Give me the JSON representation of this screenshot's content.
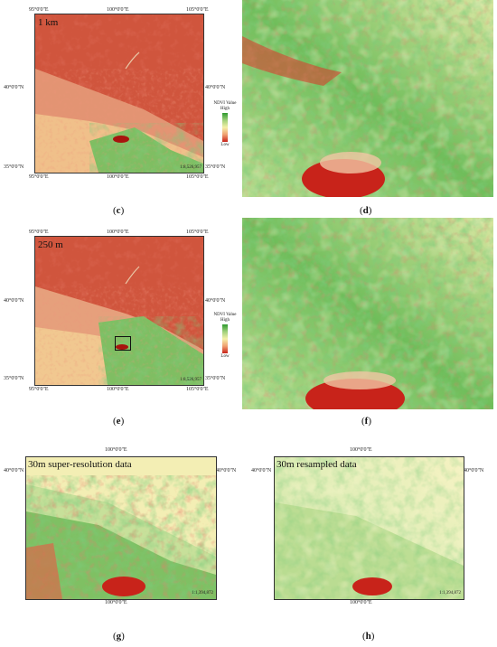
{
  "panels": {
    "c": {
      "letter": "c",
      "resolution": "1 km",
      "coords": {
        "top_left": "95°0'0\"E",
        "top_right": "105°0'0\"E",
        "top_mid": "100°0'0\"E",
        "bottom_left": "95°0'0\"E",
        "bottom_mid": "100°0'0\"E",
        "bottom_right": "105°0'0\"E",
        "left_upper": "40°0'0\"N",
        "left_lower": "35°0'0\"N",
        "right_upper": "40°0'0\"N",
        "right_lower": "35°0'0\"N"
      },
      "scale": "1:8,526,957"
    },
    "d": {
      "letter": "d"
    },
    "e": {
      "letter": "e",
      "resolution": "250 m",
      "coords": {
        "top_left": "95°0'0\"E",
        "top_right": "105°0'0\"E",
        "top_mid": "100°0'0\"E",
        "bottom_left": "95°0'0\"E",
        "bottom_mid": "100°0'0\"E",
        "bottom_right": "105°0'0\"E",
        "left_upper": "40°0'0\"N",
        "left_lower": "35°0'0\"N",
        "right_upper": "40°0'0\"N",
        "right_lower": "35°0'0\"N"
      },
      "scale": "1:8,526,957"
    },
    "f": {
      "letter": "f"
    },
    "g": {
      "letter": "g",
      "resolution": "30m super-resolution data",
      "coords": {
        "top_mid": "100°0'0\"E",
        "bottom_mid": "100°0'0\"E",
        "left_upper": "40°0'0\"N",
        "right_upper": "40°0'0\"N"
      },
      "scale": "1:1,394,872"
    },
    "h": {
      "letter": "h",
      "resolution": "30m resampled data",
      "coords": {
        "top_mid": "100°0'0\"E",
        "bottom_mid": "100°0'0\"E",
        "left_upper": "40°0'0\"N",
        "right_upper": "40°0'0\"N"
      },
      "scale": "1:1,394,872"
    }
  },
  "legend": {
    "title": "NDVI Value",
    "high": "High",
    "low": "Low"
  },
  "colors": {
    "low": "#c8231a",
    "mid": "#f4f0a8",
    "high": "#2f9a2f"
  }
}
